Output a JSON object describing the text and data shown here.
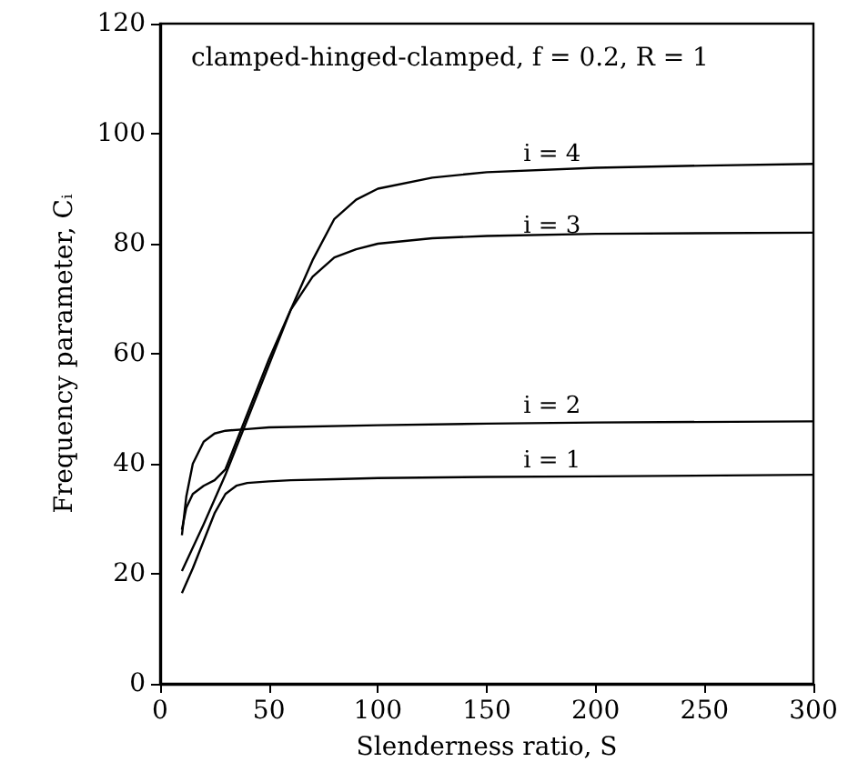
{
  "chart_data": {
    "type": "line",
    "title": "clamped-hinged-clamped, f = 0.2, R = 1",
    "xlabel": "Slenderness ratio, S",
    "ylabel": "Frequency parameter, Cᵢ",
    "xlim": [
      0,
      300
    ],
    "xticks": [
      0,
      50,
      100,
      150,
      200,
      250,
      300
    ],
    "ylim": [
      0,
      120
    ],
    "yticks": [
      0,
      20,
      40,
      60,
      80,
      100,
      120
    ],
    "grid": false,
    "marker": "none",
    "line_style": "solid",
    "series": [
      {
        "name": "i = 1",
        "color": "#000000",
        "x": [
          10,
          15,
          20,
          25,
          30,
          35,
          40,
          50,
          60,
          80,
          100,
          150,
          200,
          300
        ],
        "values": [
          16.5,
          21,
          26,
          31,
          34.5,
          36,
          36.5,
          36.8,
          37,
          37.2,
          37.4,
          37.6,
          37.7,
          38
        ]
      },
      {
        "name": "i = 2",
        "color": "#000000",
        "x": [
          10,
          12,
          15,
          20,
          25,
          30,
          40,
          50,
          100,
          150,
          200,
          300
        ],
        "values": [
          27,
          34,
          40,
          44,
          45.5,
          46,
          46.3,
          46.6,
          47,
          47.3,
          47.5,
          47.7
        ]
      },
      {
        "name": "i = 3",
        "color": "#000000",
        "x": [
          10,
          12,
          15,
          20,
          25,
          30,
          35,
          40,
          50,
          60,
          70,
          80,
          90,
          100,
          125,
          150,
          200,
          300
        ],
        "values": [
          28,
          32,
          34.5,
          36,
          37,
          39,
          44,
          49,
          59,
          68,
          74,
          77.5,
          79,
          80,
          81,
          81.4,
          81.8,
          82
        ]
      },
      {
        "name": "i = 4",
        "color": "#000000",
        "x": [
          10,
          20,
          30,
          40,
          50,
          60,
          70,
          80,
          90,
          100,
          125,
          150,
          200,
          250,
          300
        ],
        "values": [
          20.5,
          29,
          38,
          48,
          58,
          68,
          77,
          84.5,
          88,
          90,
          92,
          93,
          93.8,
          94.2,
          94.5
        ]
      }
    ]
  }
}
